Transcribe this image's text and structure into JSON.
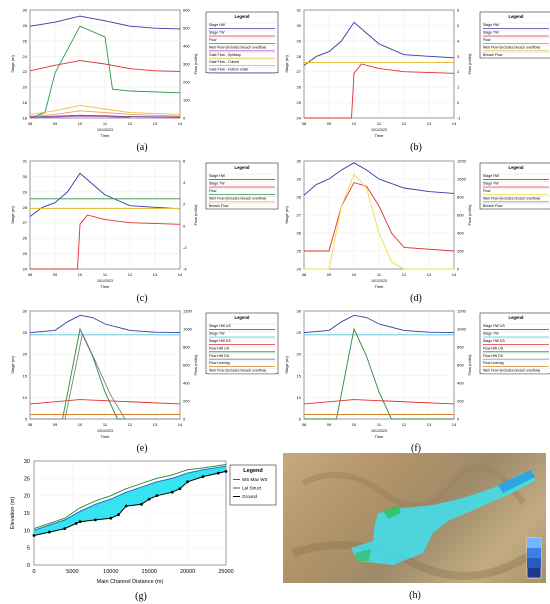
{
  "panels": [
    {
      "id": "a",
      "caption": "(a)",
      "ylabel": "Stage (m)",
      "y2label": "Flow (m3/s)",
      "xlabel": "Time",
      "date": "10/1/2023",
      "xticks": [
        "08",
        "09",
        "10",
        "11",
        "12",
        "13",
        "14"
      ],
      "yticks": [
        "16",
        "18",
        "20",
        "22",
        "24",
        "26",
        "28",
        "30"
      ],
      "y2ticks": [
        "0",
        "100",
        "200",
        "300",
        "400",
        "500",
        "600"
      ],
      "legend": {
        "title": "Legend",
        "entries": [
          "Stage HW",
          "Stage TW",
          "Flow",
          "Weir Flow (includes breach overflow)",
          "Gate Flow - Spillway",
          "Gate Flow - Culvert",
          "Gate Flow - bottom outlet"
        ]
      }
    },
    {
      "id": "b",
      "caption": "(b)",
      "ylabel": "Stage (m)",
      "y2label": "Flow (m3/s)",
      "xlabel": "Time",
      "date": "10/1/2023",
      "xticks": [
        "08",
        "09",
        "10",
        "11",
        "12",
        "13",
        "14"
      ],
      "yticks": [
        "24",
        "25",
        "26",
        "27",
        "28",
        "29",
        "30",
        "31"
      ],
      "y2ticks": [
        "-1",
        "0",
        "1",
        "2",
        "3",
        "4",
        "5",
        "6"
      ],
      "legend": {
        "title": "Legend",
        "entries": [
          "Stage HW",
          "Stage TW",
          "Flow",
          "Weir Flow (includes breach overflow)",
          "Breach Flow"
        ]
      }
    },
    {
      "id": "c",
      "caption": "(c)",
      "ylabel": "Stage (m)",
      "y2label": "Flow (m3/s)",
      "xlabel": "Time",
      "date": "10/1/2023",
      "xticks": [
        "08",
        "09",
        "10",
        "11",
        "12",
        "13",
        "14"
      ],
      "yticks": [
        "24",
        "25",
        "26",
        "27",
        "28",
        "29",
        "30",
        "31"
      ],
      "y2ticks": [
        "-4",
        "-2",
        "0",
        "2",
        "4",
        "6"
      ],
      "legend": {
        "title": "Legend",
        "entries": [
          "Stage HW",
          "Stage TW",
          "Flow",
          "Weir Flow (includes breach overflow)",
          "Breach Flow"
        ]
      }
    },
    {
      "id": "d",
      "caption": "(d)",
      "ylabel": "Stage (m)",
      "y2label": "Flow (m3/s)",
      "xlabel": "Time",
      "date": "10/1/2023",
      "xticks": [
        "08",
        "09",
        "10",
        "11",
        "12",
        "13",
        "14"
      ],
      "yticks": [
        "24",
        "25",
        "26",
        "27",
        "28",
        "29",
        "30"
      ],
      "y2ticks": [
        "0",
        "200",
        "400",
        "600",
        "800",
        "1000",
        "1200"
      ],
      "legend": {
        "title": "Legend",
        "entries": [
          "Stage HW",
          "Stage TW",
          "Flow",
          "Weir Flow (includes breach overflow)",
          "Breach Flow"
        ]
      }
    },
    {
      "id": "e",
      "caption": "(e)",
      "ylabel": "Stage (m)",
      "y2label": "Flow (m3/s)",
      "xlabel": "Time",
      "date": "10/1/2023",
      "xticks": [
        "08",
        "09",
        "10",
        "11",
        "12",
        "13",
        "14"
      ],
      "yticks": [
        "5",
        "10",
        "15",
        "20",
        "25",
        "30"
      ],
      "y2ticks": [
        "0",
        "200",
        "400",
        "600",
        "800",
        "1000",
        "1200"
      ],
      "legend": {
        "title": "Legend",
        "entries": [
          "Stage HW US",
          "Stage TW",
          "Stage HW DS",
          "Flow HW US",
          "Flow HW DS",
          "Flow Leaving",
          "Weir Flow (includes breach overflow)"
        ]
      }
    },
    {
      "id": "f",
      "caption": "(f)",
      "ylabel": "Stage (m)",
      "y2label": "Flow (m3/s)",
      "xlabel": "Time",
      "date": "10/1/2023",
      "xticks": [
        "08",
        "09",
        "10",
        "11",
        "12",
        "13",
        "14"
      ],
      "yticks": [
        "5",
        "10",
        "15",
        "20",
        "25",
        "30"
      ],
      "y2ticks": [
        "0",
        "200",
        "400",
        "600",
        "800",
        "1000",
        "1200"
      ],
      "legend": {
        "title": "Legend",
        "entries": [
          "Stage HW US",
          "Stage TW",
          "Stage HW DS",
          "Flow HW US",
          "Flow HW DS",
          "Flow Leaving",
          "Weir Flow (includes breach overflow)"
        ]
      }
    }
  ],
  "chart_data": [
    {
      "type": "line",
      "panel": "a",
      "xlim": [
        8,
        14
      ],
      "ylim": [
        15,
        31
      ],
      "y2lim": [
        0,
        600
      ],
      "series": [
        {
          "name": "Stage HW",
          "color": "#3a3aaa",
          "axis": "y",
          "x": [
            8,
            9,
            10,
            11,
            12,
            13,
            14
          ],
          "values": [
            28.6,
            29.2,
            30.1,
            29.4,
            28.6,
            28.3,
            28.2
          ]
        },
        {
          "name": "Stage TW",
          "color": "#e03030",
          "axis": "y",
          "x": [
            8,
            9,
            10,
            11,
            12,
            13,
            14
          ],
          "values": [
            22.0,
            22.8,
            23.5,
            23.0,
            22.3,
            22.0,
            21.9
          ]
        },
        {
          "name": "Flow",
          "color": "#2a9a4a",
          "axis": "y2",
          "x": [
            8,
            8.6,
            9,
            10,
            11,
            11.3,
            12,
            14
          ],
          "values": [
            0,
            30,
            250,
            510,
            450,
            160,
            150,
            140
          ]
        },
        {
          "name": "Weir Flow (includes breach overflow)",
          "color": "#c05cc0",
          "axis": "y2",
          "x": [
            8,
            9,
            10,
            11,
            12,
            14
          ],
          "values": [
            0,
            5,
            10,
            8,
            3,
            0
          ]
        },
        {
          "name": "Gate Flow - Spillway",
          "color": "#e8c040",
          "axis": "y2",
          "x": [
            8,
            9,
            10,
            11,
            12,
            14
          ],
          "values": [
            20,
            40,
            70,
            50,
            30,
            20
          ]
        },
        {
          "name": "Gate Flow - Culvert",
          "color": "#e6a060",
          "axis": "y2",
          "x": [
            8,
            9,
            10,
            11,
            12,
            14
          ],
          "values": [
            10,
            20,
            40,
            30,
            20,
            10
          ]
        },
        {
          "name": "Gate Flow - bottom outlet",
          "color": "#7040a0",
          "axis": "y2",
          "x": [
            8,
            9,
            10,
            11,
            12,
            14
          ],
          "values": [
            5,
            10,
            15,
            12,
            8,
            5
          ]
        }
      ]
    },
    {
      "type": "line",
      "panel": "b",
      "xlim": [
        8,
        14
      ],
      "ylim": [
        24,
        31
      ],
      "y2lim": [
        -1,
        6
      ],
      "series": [
        {
          "name": "Stage HW",
          "color": "#3a3aaa",
          "axis": "y",
          "x": [
            8,
            8.5,
            9,
            9.5,
            10,
            10.5,
            11,
            12,
            13,
            14
          ],
          "values": [
            27.4,
            28.0,
            28.3,
            29.0,
            30.2,
            29.5,
            28.8,
            28.1,
            28.0,
            27.9
          ]
        },
        {
          "name": "Stage TW",
          "color": "#e03030",
          "axis": "y",
          "x": [
            8,
            9.9,
            10,
            10.3,
            11,
            12,
            14
          ],
          "values": [
            24.0,
            24.0,
            26.9,
            27.5,
            27.2,
            27.0,
            26.9
          ]
        },
        {
          "name": "Weir Flow (includes breach overflow)",
          "color": "#e8c040",
          "axis": "y2",
          "x": [
            8,
            14
          ],
          "values": [
            2.6,
            2.6
          ]
        }
      ]
    },
    {
      "type": "line",
      "panel": "c",
      "xlim": [
        8,
        14
      ],
      "ylim": [
        24,
        31
      ],
      "y2lim": [
        -4,
        6
      ],
      "series": [
        {
          "name": "Stage HW",
          "color": "#3a3aaa",
          "axis": "y",
          "x": [
            8,
            8.5,
            9,
            9.5,
            10,
            10.5,
            11,
            12,
            13,
            14
          ],
          "values": [
            27.4,
            28.0,
            28.3,
            29.0,
            30.2,
            29.5,
            28.8,
            28.1,
            28.0,
            27.9
          ]
        },
        {
          "name": "Stage TW",
          "color": "#e03030",
          "axis": "y",
          "x": [
            8,
            9.9,
            10,
            10.3,
            11,
            12,
            14
          ],
          "values": [
            24.0,
            24.0,
            26.9,
            27.5,
            27.2,
            27.0,
            26.9
          ]
        },
        {
          "name": "Flow",
          "color": "#2a9a4a",
          "axis": "y2",
          "x": [
            8,
            14
          ],
          "values": [
            2.5,
            2.5
          ]
        },
        {
          "name": "Weir Flow (includes breach overflow)",
          "color": "#e8c040",
          "axis": "y2",
          "x": [
            8,
            14
          ],
          "values": [
            1.6,
            1.6
          ]
        }
      ]
    },
    {
      "type": "line",
      "panel": "d",
      "xlim": [
        8,
        14
      ],
      "ylim": [
        24,
        30
      ],
      "y2lim": [
        0,
        1200
      ],
      "series": [
        {
          "name": "Stage HW",
          "color": "#3a3aaa",
          "axis": "y",
          "x": [
            8,
            8.5,
            9,
            9.5,
            10,
            10.5,
            11,
            12,
            13,
            14
          ],
          "values": [
            28.1,
            28.7,
            29.0,
            29.5,
            29.9,
            29.5,
            29.0,
            28.5,
            28.3,
            28.2
          ]
        },
        {
          "name": "Stage TW",
          "color": "#e03030",
          "axis": "y",
          "x": [
            8,
            9,
            9.5,
            10,
            10.5,
            11,
            11.5,
            12,
            14
          ],
          "values": [
            25.0,
            25.0,
            27.5,
            28.8,
            28.6,
            27.5,
            26.0,
            25.2,
            25.0
          ]
        },
        {
          "name": "Flow",
          "color": "#e8e040",
          "axis": "y2",
          "x": [
            8,
            9,
            9.5,
            10,
            10.5,
            11,
            11.5,
            12,
            14
          ],
          "values": [
            0,
            0,
            700,
            1050,
            900,
            400,
            80,
            0,
            0
          ]
        }
      ]
    },
    {
      "type": "line",
      "panel": "e",
      "xlim": [
        8,
        14
      ],
      "ylim": [
        5,
        30
      ],
      "y2lim": [
        0,
        1200
      ],
      "series": [
        {
          "name": "Stage HW US",
          "color": "#3a3aaa",
          "axis": "y",
          "x": [
            8,
            9,
            9.5,
            10,
            10.5,
            11,
            12,
            13,
            14
          ],
          "values": [
            25.0,
            25.5,
            27.5,
            29.0,
            28.5,
            27.0,
            25.5,
            25.1,
            25.0
          ]
        },
        {
          "name": "Stage TW",
          "color": "#50c0d8",
          "axis": "y",
          "x": [
            8,
            14
          ],
          "values": [
            24.5,
            24.5
          ]
        },
        {
          "name": "Stage HW DS",
          "color": "#e03030",
          "axis": "y",
          "x": [
            8,
            10,
            14
          ],
          "values": [
            8.5,
            9.5,
            8.5
          ]
        },
        {
          "name": "Flow HW US",
          "color": "#2a8a3a",
          "axis": "y2",
          "x": [
            8,
            9.3,
            10,
            10.5,
            11,
            11.5,
            14
          ],
          "values": [
            0,
            0,
            1000,
            700,
            300,
            0,
            0
          ]
        },
        {
          "name": "Flow HW DS",
          "color": "#808080",
          "axis": "y2",
          "x": [
            8,
            9.4,
            10.1,
            10.6,
            11.2,
            11.8,
            14
          ],
          "values": [
            0,
            0,
            950,
            650,
            280,
            0,
            0
          ]
        },
        {
          "name": "Flow Leaving",
          "color": "#d08030",
          "axis": "y2",
          "x": [
            8,
            14
          ],
          "values": [
            50,
            50
          ]
        }
      ]
    },
    {
      "type": "line",
      "panel": "f",
      "xlim": [
        8,
        14
      ],
      "ylim": [
        5,
        30
      ],
      "y2lim": [
        0,
        1200
      ],
      "series": [
        {
          "name": "Stage HW US",
          "color": "#3a3aaa",
          "axis": "y",
          "x": [
            8,
            9,
            9.5,
            10,
            10.5,
            11,
            12,
            13,
            14
          ],
          "values": [
            25.0,
            25.5,
            27.5,
            29.0,
            28.5,
            27.0,
            25.5,
            25.1,
            25.0
          ]
        },
        {
          "name": "Stage TW",
          "color": "#50c0d8",
          "axis": "y",
          "x": [
            8,
            14
          ],
          "values": [
            24.5,
            24.5
          ]
        },
        {
          "name": "Stage HW DS",
          "color": "#e03030",
          "axis": "y",
          "x": [
            8,
            10,
            14
          ],
          "values": [
            8.5,
            9.5,
            8.5
          ]
        },
        {
          "name": "Flow HW US",
          "color": "#2a8a3a",
          "axis": "y2",
          "x": [
            8,
            9.3,
            10,
            10.5,
            11,
            11.5,
            14
          ],
          "values": [
            0,
            0,
            1000,
            700,
            300,
            0,
            0
          ]
        },
        {
          "name": "Flow Leaving",
          "color": "#d08030",
          "axis": "y2",
          "x": [
            8,
            14
          ],
          "values": [
            50,
            50
          ]
        }
      ]
    },
    {
      "type": "area",
      "panel": "g",
      "caption": "(g)",
      "xlabel": "Main Channel Distance (m)",
      "ylabel": "Elevation (m)",
      "xlim": [
        0,
        25000
      ],
      "ylim": [
        0,
        30
      ],
      "xticks": [
        "0",
        "5000",
        "10000",
        "15000",
        "20000",
        "25000"
      ],
      "yticks": [
        "0",
        "5",
        "10",
        "15",
        "20",
        "25",
        "30"
      ],
      "legend": {
        "title": "Legend",
        "entries": [
          "WS Max WS",
          "Lat Struct",
          "Ground"
        ]
      },
      "series": [
        {
          "name": "Ground",
          "color": "#000000",
          "x": [
            0,
            2000,
            4000,
            5500,
            6000,
            8000,
            10000,
            11000,
            12000,
            14000,
            15000,
            16000,
            18000,
            19000,
            20000,
            22000,
            24000,
            25000
          ],
          "values": [
            8.5,
            9.5,
            10.5,
            12.0,
            12.5,
            13.0,
            13.5,
            14.5,
            17.0,
            17.5,
            19.0,
            20.0,
            21.0,
            22.0,
            24.0,
            25.5,
            26.5,
            27.0
          ]
        },
        {
          "name": "WS Max WS",
          "color": "#2060c0",
          "x": [
            0,
            2000,
            4000,
            6000,
            8000,
            10000,
            12000,
            14000,
            16000,
            18000,
            20000,
            22000,
            25000
          ],
          "values": [
            10.0,
            11.5,
            13.0,
            15.5,
            17.5,
            19.0,
            21.0,
            22.5,
            24.0,
            25.0,
            26.5,
            27.5,
            28.5
          ]
        },
        {
          "name": "Lat Struct",
          "color": "#1a8a2a",
          "x": [
            0,
            2000,
            4000,
            6000,
            8000,
            10000,
            12000,
            14000,
            16000,
            18000,
            20000,
            22000,
            25000
          ],
          "values": [
            10.5,
            12.0,
            13.5,
            16.5,
            18.5,
            20.0,
            22.0,
            23.5,
            25.0,
            26.0,
            27.5,
            28.0,
            29.0
          ]
        }
      ]
    }
  ],
  "map": {
    "caption": "(h)"
  }
}
